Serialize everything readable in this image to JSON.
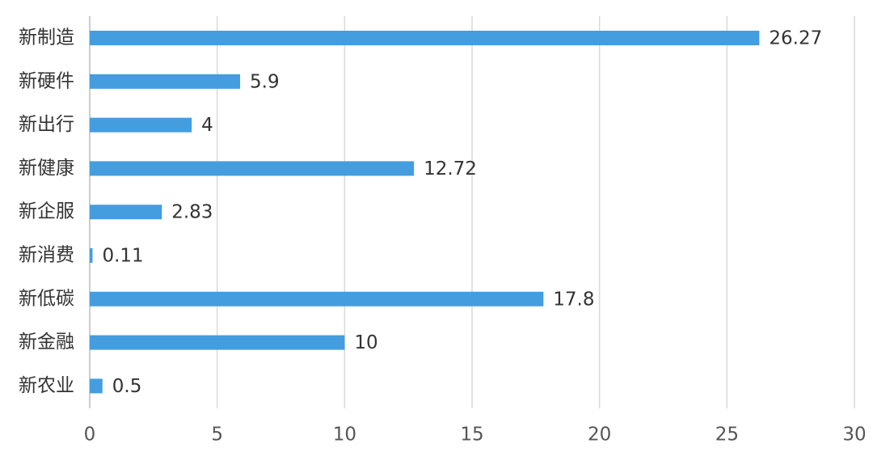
{
  "chart_data": {
    "type": "hbar",
    "categories": [
      "新制造",
      "新硬件",
      "新出行",
      "新健康",
      "新企服",
      "新消费",
      "新低碳",
      "新金融",
      "新农业"
    ],
    "values": [
      26.27,
      5.9,
      4,
      12.72,
      2.83,
      0.11,
      17.8,
      10,
      0.5
    ],
    "color": "#449ddf",
    "xlim": [
      0,
      30
    ],
    "xticks": [
      0,
      5,
      10,
      15,
      20,
      25,
      30
    ],
    "grid": true
  }
}
